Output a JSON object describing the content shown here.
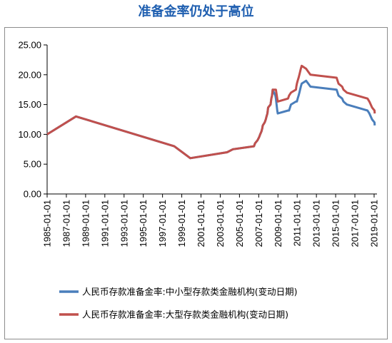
{
  "title": "准备金率仍处于高位",
  "chart_data": {
    "type": "line",
    "ylim": [
      0,
      25
    ],
    "yticks": [
      "0.00",
      "5.00",
      "10.00",
      "15.00",
      "20.00",
      "25.00"
    ],
    "xticks": [
      "1985-01-01",
      "1987-01-01",
      "1989-01-01",
      "1991-01-01",
      "1993-01-01",
      "1995-01-01",
      "1997-01-01",
      "1999-01-01",
      "2001-01-01",
      "2003-01-01",
      "2005-01-01",
      "2007-01-01",
      "2009-01-01",
      "2011-01-01",
      "2013-01-01",
      "2015-01-01",
      "2017-01-01",
      "2019-01-01"
    ],
    "grid": false,
    "legend_position": "bottom",
    "series": [
      {
        "name": "人民币存款准备金率:中小型存款类金融机构(变动日期)",
        "color": "#4A7EBB",
        "x": [
          "1985-01-01",
          "1987-12-31",
          "1998-03-21",
          "1999-11-21",
          "2003-09-21",
          "2004-04-25",
          "2006-07-05",
          "2006-08-15",
          "2006-11-15",
          "2007-01-15",
          "2007-02-25",
          "2007-04-16",
          "2007-05-15",
          "2007-06-05",
          "2007-08-15",
          "2007-09-25",
          "2007-10-25",
          "2007-11-26",
          "2007-12-25",
          "2008-03-25",
          "2008-04-25",
          "2008-05-20",
          "2008-06-15",
          "2008-09-25",
          "2008-10-15",
          "2008-12-05",
          "2008-12-25",
          "2010-01-18",
          "2010-02-25",
          "2010-05-10",
          "2010-11-16",
          "2010-11-29",
          "2010-12-20",
          "2011-01-20",
          "2011-02-24",
          "2011-03-25",
          "2011-04-21",
          "2011-05-18",
          "2011-06-20",
          "2011-12-05",
          "2012-02-24",
          "2012-05-18",
          "2015-02-05",
          "2015-04-20",
          "2015-09-06",
          "2015-10-24",
          "2016-03-01",
          "2018-04-25",
          "2018-07-05",
          "2018-10-15",
          "2019-01-15",
          "2019-01-25"
        ],
        "values": [
          10,
          13,
          8,
          6,
          7,
          7.5,
          8,
          8.5,
          9,
          9.5,
          10,
          10.5,
          11,
          11.5,
          12,
          12.5,
          13,
          13.5,
          14.5,
          15,
          16,
          16.5,
          17.5,
          16.5,
          16,
          14,
          13.5,
          14,
          14,
          15,
          15.5,
          15.5,
          15.5,
          16,
          16.5,
          17,
          17.5,
          18,
          18.5,
          19,
          18.5,
          18,
          17.5,
          16.5,
          16,
          15.5,
          15,
          14,
          13.5,
          12.5,
          12,
          11.5
        ]
      },
      {
        "name": "人民币存款准备金率:大型存款类金融机构(变动日期)",
        "color": "#C0504D",
        "x": [
          "1985-01-01",
          "1987-12-31",
          "1998-03-21",
          "1999-11-21",
          "2003-09-21",
          "2004-04-25",
          "2006-07-05",
          "2006-08-15",
          "2006-11-15",
          "2007-01-15",
          "2007-02-25",
          "2007-04-16",
          "2007-05-15",
          "2007-06-05",
          "2007-08-15",
          "2007-09-25",
          "2007-10-25",
          "2007-11-26",
          "2007-12-25",
          "2008-03-25",
          "2008-04-25",
          "2008-05-20",
          "2008-06-15",
          "2008-09-25",
          "2008-10-15",
          "2008-12-05",
          "2008-12-25",
          "2010-01-18",
          "2010-02-25",
          "2010-05-10",
          "2010-11-16",
          "2010-11-29",
          "2010-12-20",
          "2011-01-20",
          "2011-02-24",
          "2011-03-25",
          "2011-04-21",
          "2011-05-18",
          "2011-06-20",
          "2011-12-05",
          "2012-02-24",
          "2012-05-18",
          "2015-02-05",
          "2015-04-20",
          "2015-09-06",
          "2015-10-24",
          "2016-03-01",
          "2018-04-25",
          "2018-07-05",
          "2018-10-15",
          "2019-01-15",
          "2019-01-25"
        ],
        "values": [
          10,
          13,
          8,
          6,
          7,
          7.5,
          8,
          8.5,
          9,
          9.5,
          10,
          10.5,
          11,
          11.5,
          12,
          12.5,
          13,
          13.5,
          14.5,
          15,
          16,
          16.5,
          17.5,
          17.5,
          17.5,
          16,
          15.5,
          16,
          16.5,
          17,
          17.5,
          18,
          18.5,
          19,
          19.5,
          20,
          20.5,
          21,
          21.5,
          21,
          20.5,
          20,
          19.5,
          18.5,
          18,
          17.5,
          17,
          16,
          15.5,
          14.5,
          14,
          13.5
        ]
      }
    ]
  }
}
